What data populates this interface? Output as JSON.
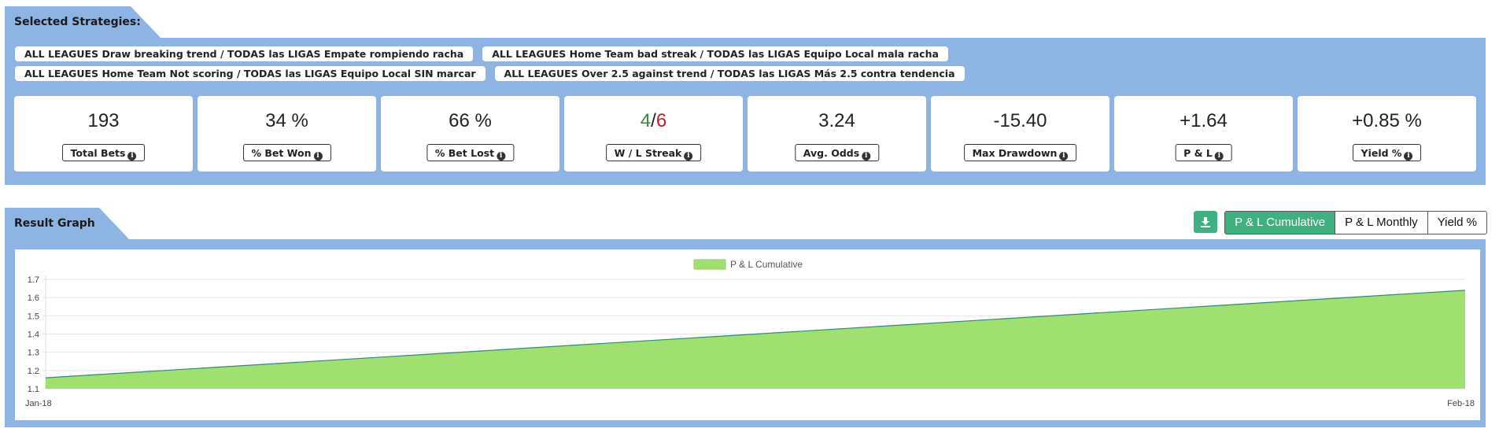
{
  "strategies_section": {
    "title": "Selected Strategies:",
    "strategies": [
      "ALL LEAGUES Draw breaking trend / TODAS las LIGAS Empate rompiendo racha",
      "ALL LEAGUES Home Team bad streak / TODAS las LIGAS Equipo Local mala racha",
      "ALL LEAGUES Home Team Not scoring / TODAS las LIGAS Equipo Local SIN marcar",
      "ALL LEAGUES Over 2.5 against trend / TODAS las LIGAS Más 2.5 contra tendencia"
    ]
  },
  "stats": {
    "total_bets": {
      "value": "193",
      "label": "Total Bets"
    },
    "bet_won": {
      "value": "34 %",
      "label": "% Bet Won"
    },
    "bet_lost": {
      "value": "66 %",
      "label": "% Bet Lost"
    },
    "streak": {
      "wins": "4",
      "sep": "/",
      "losses": "6",
      "label": "W / L Streak"
    },
    "avg_odds": {
      "value": "3.24",
      "label": "Avg. Odds"
    },
    "max_drawdown": {
      "value": "-15.40",
      "label": "Max Drawdown"
    },
    "pl": {
      "value": "+1.64",
      "label": "P & L"
    },
    "yield": {
      "value": "+0.85 %",
      "label": "Yield %"
    }
  },
  "result_section": {
    "title": "Result Graph",
    "buttons": {
      "download_icon": "download-icon",
      "cumulative": "P & L Cumulative",
      "monthly": "P & L Monthly",
      "yield": "Yield %"
    },
    "active_button": "cumulative"
  },
  "colors": {
    "panel": "#8db4e2",
    "green_button": "#3fb07f",
    "area_fill": "#a0e070",
    "area_line": "#2f8a7a",
    "positive": "#3a8a3a",
    "negative": "#c0202a"
  },
  "chart_data": {
    "type": "area",
    "legend": "P & L Cumulative",
    "legend_position": "top-center",
    "x": [
      "Jan-18",
      "Feb-18"
    ],
    "series": [
      {
        "name": "P & L Cumulative",
        "values": [
          1.16,
          1.64
        ]
      }
    ],
    "ylim": [
      1.1,
      1.7
    ],
    "yticks": [
      "1.1",
      "1.2",
      "1.3",
      "1.4",
      "1.5",
      "1.6",
      "1.7"
    ],
    "grid": true
  }
}
